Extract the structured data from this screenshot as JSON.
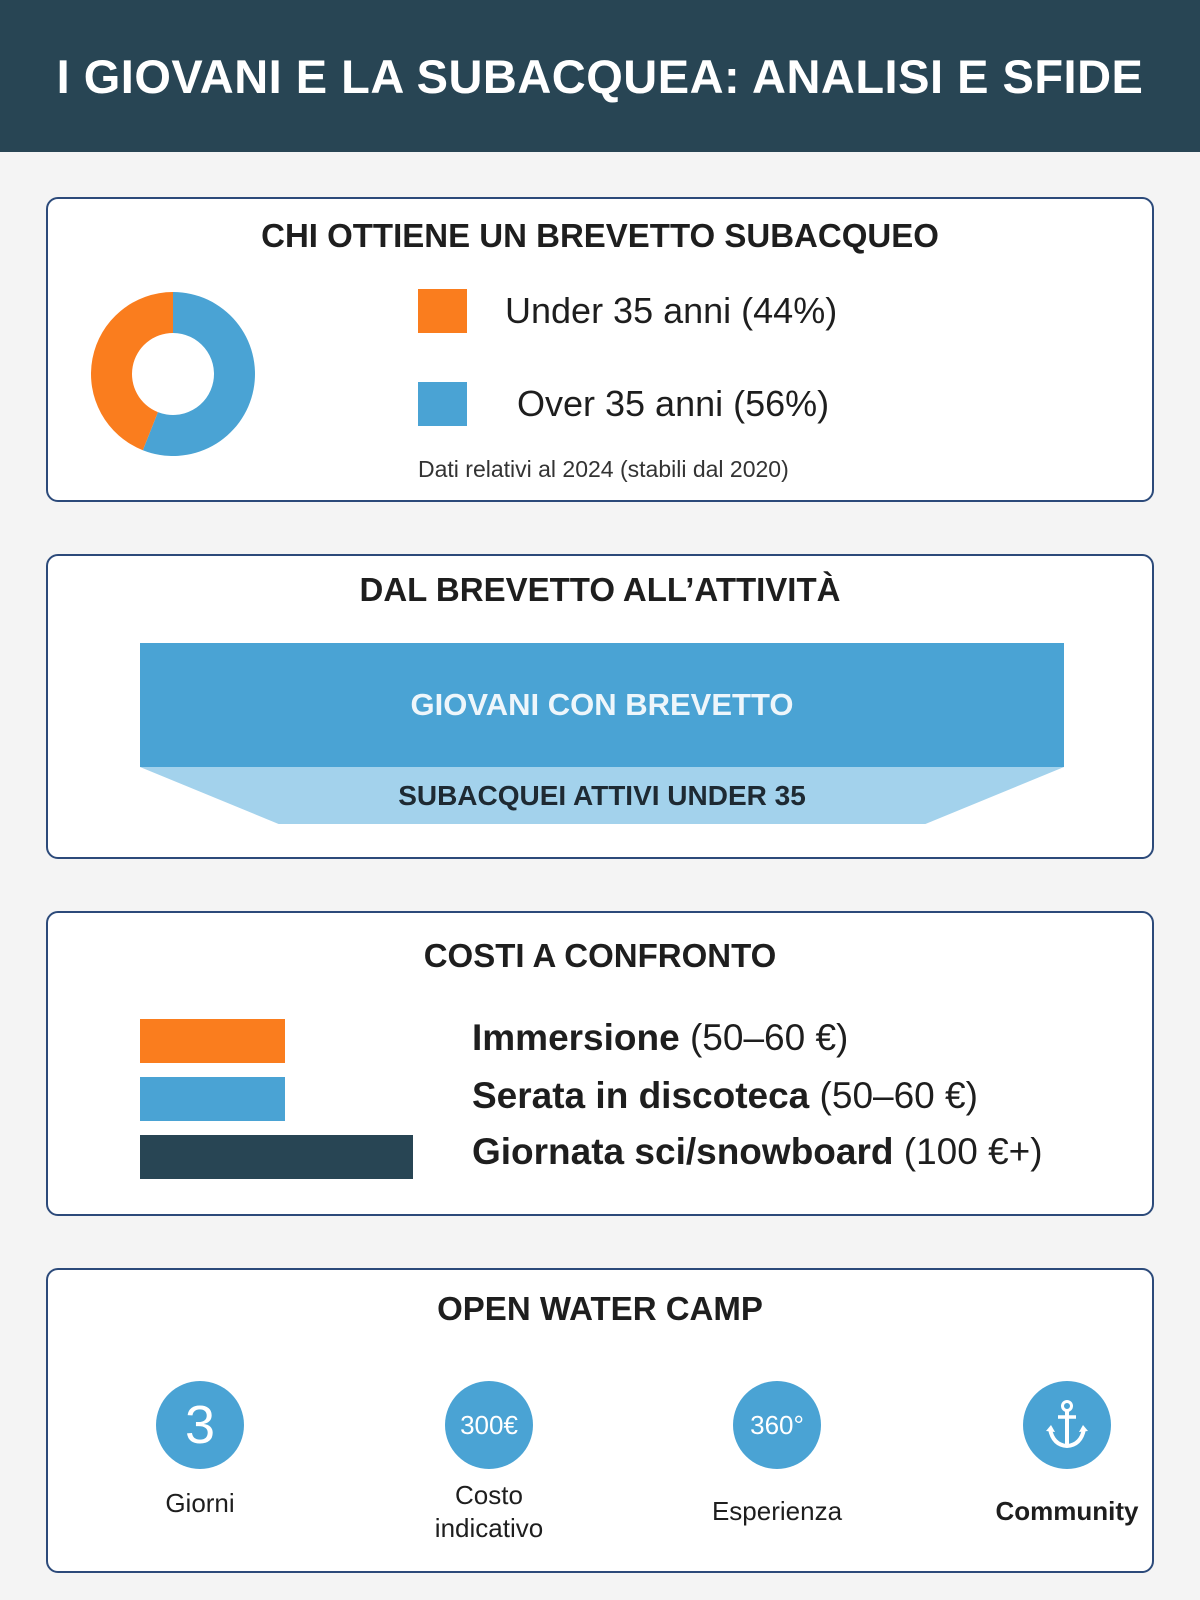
{
  "header": {
    "title": "I GIOVANI E LA SUBACQUEA: ANALISI E SFIDE"
  },
  "certification": {
    "title": "CHI OTTIENE UN BREVETTO SUBACQUEO",
    "legend": [
      {
        "label": "Under 35 anni (44%)",
        "color": "#fa7d1e"
      },
      {
        "label": "Over 35 anni (56%)",
        "color": "#4aa3d4"
      }
    ],
    "note": "Dati relativi al 2024 (stabili dal 2020)",
    "chart_data": {
      "type": "pie",
      "categories": [
        "Under 35 anni",
        "Over 35 anni"
      ],
      "values": [
        44,
        56
      ],
      "colors": [
        "#fa7d1e",
        "#4aa3d4"
      ]
    }
  },
  "funnel": {
    "title": "DAL BREVETTO ALL’ATTIVITÀ",
    "top_label": "GIOVANI CON BREVETTO",
    "bottom_label": "SUBACQUEI ATTIVI UNDER 35",
    "top_color": "#4aa3d4",
    "bottom_color": "#a3d2ec"
  },
  "costs": {
    "title": "COSTI A CONFRONTO",
    "items": [
      {
        "name": "Immersione",
        "price": "(50–60 €)",
        "color": "#fa7d1e"
      },
      {
        "name": "Serata in discoteca",
        "price": "(50–60 €)",
        "color": "#4aa3d4"
      },
      {
        "name": "Giornata sci/snowboard",
        "price": "(100 €+)",
        "color": "#284554"
      }
    ]
  },
  "camp": {
    "title": "OPEN WATER CAMP",
    "stats": [
      {
        "value": "3",
        "label": "Giorni"
      },
      {
        "value": "300€",
        "label": "Costo indicativo"
      },
      {
        "value": "360°",
        "label": "Esperienza"
      },
      {
        "icon": "anchor-icon",
        "label": "Community"
      }
    ]
  },
  "colors": {
    "header_bg": "#284554",
    "card_border": "#2c4a7a",
    "accent_orange": "#fa7d1e",
    "accent_blue": "#4aa3d4"
  }
}
